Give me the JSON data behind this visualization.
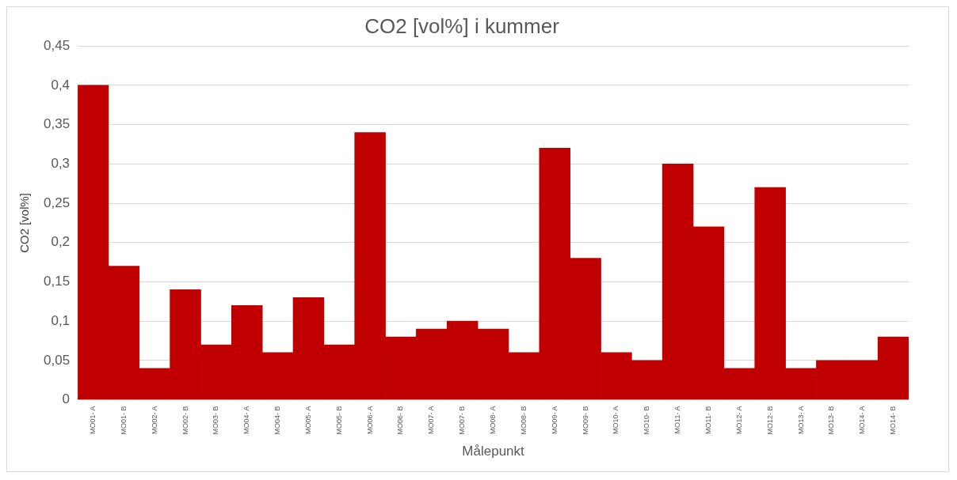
{
  "chart_data": {
    "type": "bar",
    "title": "CO2 [vol%] i kummer",
    "xlabel": "Målepunkt",
    "ylabel": "CO2 [vol%]",
    "categories": [
      "MO01- A",
      "MO01- B",
      "MO02- A",
      "MO02- B",
      "MO03- B",
      "MO04- A",
      "MO04- B",
      "MO05- A",
      "MO05- B",
      "MO06- A",
      "MO06- B",
      "MO07- A",
      "MO07- B",
      "MO08- A",
      "MO08- B",
      "MO09- A",
      "MO09- B",
      "MO10- A",
      "MO10- B",
      "MO11- A",
      "MO11- B",
      "MO12- A",
      "MO12- B",
      "MO13- A",
      "MO13- B",
      "MO14- A",
      "MO14- B"
    ],
    "values": [
      0.4,
      0.17,
      0.04,
      0.14,
      0.07,
      0.12,
      0.06,
      0.13,
      0.07,
      0.34,
      0.08,
      0.09,
      0.1,
      0.09,
      0.06,
      0.32,
      0.18,
      0.06,
      0.05,
      0.3,
      0.22,
      0.04,
      0.27,
      0.04,
      0.05,
      0.05,
      0.08
    ],
    "color": "#c00000",
    "ylim": [
      0,
      0.45
    ],
    "yticks": [
      0,
      {
        "value": 0.05,
        "label": "0,05"
      },
      {
        "value": 0.1,
        "label": "0,1"
      },
      {
        "value": 0.15,
        "label": "0,15"
      },
      {
        "value": 0.2,
        "label": "0,2"
      },
      {
        "value": 0.25,
        "label": "0,25"
      },
      {
        "value": 0.3,
        "label": "0,3"
      },
      {
        "value": 0.35,
        "label": "0,35"
      },
      {
        "value": 0.4,
        "label": "0,4"
      },
      {
        "value": 0.45,
        "label": "0,45"
      }
    ],
    "grid": "y",
    "legend": false
  }
}
